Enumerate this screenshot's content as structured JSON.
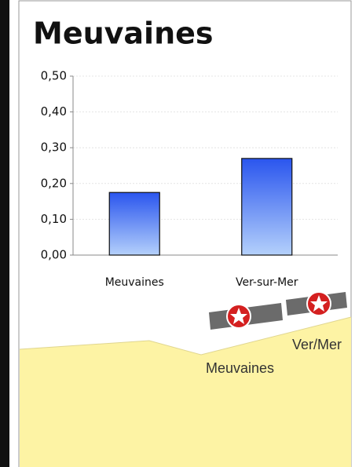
{
  "chart_data": {
    "type": "bar",
    "title": "Meuvaines",
    "categories": [
      "Meuvaines",
      "Ver-sur-Mer"
    ],
    "values": [
      0.175,
      0.27
    ],
    "color": "#2f5fef",
    "ylim": [
      0,
      0.5
    ],
    "yticks": [
      {
        "value": 0,
        "label": "0,00"
      },
      {
        "value": 0.1,
        "label": "0,10"
      },
      {
        "value": 0.2,
        "label": "0,20"
      },
      {
        "value": 0.3,
        "label": "0,30"
      },
      {
        "value": 0.4,
        "label": "0,40"
      },
      {
        "value": 0.5,
        "label": "0,50"
      }
    ],
    "grid": true
  },
  "map": {
    "labels": [
      "Ver/Mer",
      "Meuvaines"
    ]
  }
}
